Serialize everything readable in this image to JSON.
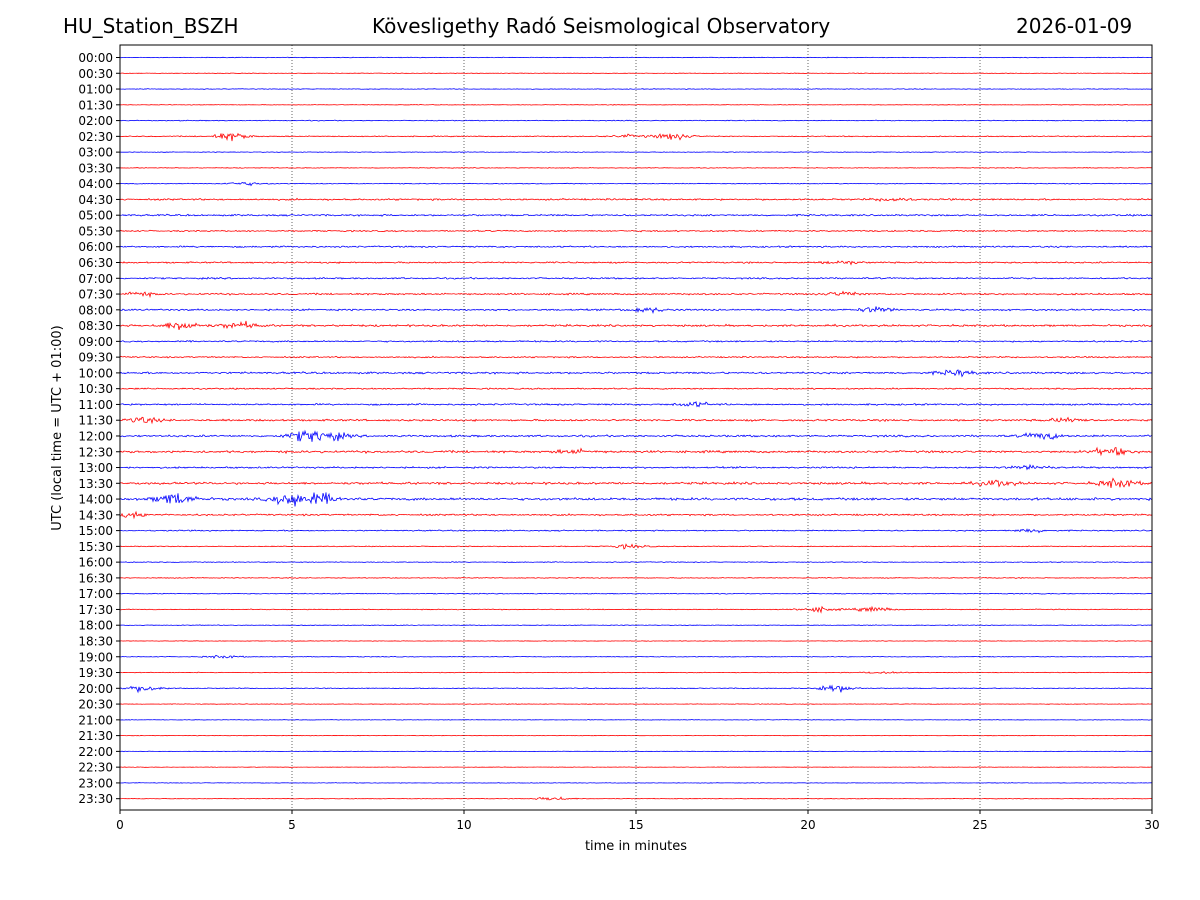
{
  "header": {
    "station": "HU_Station_BSZH",
    "observatory": "Kövesligethy Radó Seismological Observatory",
    "date": "2026-01-09"
  },
  "chart_data": {
    "type": "line",
    "title": "Kövesligethy Radó Seismological Observatory",
    "xlabel": "time in minutes",
    "ylabel": "UTC (local time = UTC + 01:00)",
    "xlim": [
      0,
      30
    ],
    "x_ticks": [
      "0",
      "5",
      "10",
      "15",
      "20",
      "25",
      "30"
    ],
    "vertical_gridlines_at": [
      5,
      10,
      15,
      20,
      25
    ],
    "colors": [
      "#0000ff",
      "#ff0000"
    ],
    "trace_labels": [
      "00:00",
      "00:30",
      "01:00",
      "01:30",
      "02:00",
      "02:30",
      "03:00",
      "03:30",
      "04:00",
      "04:30",
      "05:00",
      "05:30",
      "06:00",
      "06:30",
      "07:00",
      "07:30",
      "08:00",
      "08:30",
      "09:00",
      "09:30",
      "10:00",
      "10:30",
      "11:00",
      "11:30",
      "12:00",
      "12:30",
      "13:00",
      "13:30",
      "14:00",
      "14:30",
      "15:00",
      "15:30",
      "16:00",
      "16:30",
      "17:00",
      "17:30",
      "18:00",
      "18:30",
      "19:00",
      "19:30",
      "20:00",
      "20:30",
      "21:00",
      "21:30",
      "22:00",
      "22:30",
      "23:00",
      "23:30"
    ],
    "noise_level": [
      0.12,
      0.1,
      0.12,
      0.1,
      0.15,
      0.18,
      0.12,
      0.12,
      0.15,
      0.3,
      0.3,
      0.25,
      0.28,
      0.28,
      0.28,
      0.3,
      0.3,
      0.35,
      0.28,
      0.25,
      0.35,
      0.25,
      0.3,
      0.35,
      0.35,
      0.4,
      0.3,
      0.4,
      0.45,
      0.3,
      0.22,
      0.15,
      0.15,
      0.15,
      0.15,
      0.15,
      0.12,
      0.1,
      0.12,
      0.12,
      0.15,
      0.1,
      0.1,
      0.08,
      0.1,
      0.08,
      0.1,
      0.1
    ],
    "events": [
      {
        "trace": 5,
        "minute": 3.2,
        "amp": 1.4
      },
      {
        "trace": 5,
        "minute": 16.1,
        "amp": 1.2
      },
      {
        "trace": 5,
        "minute": 14.8,
        "amp": 0.5
      },
      {
        "trace": 8,
        "minute": 3.6,
        "amp": 0.6
      },
      {
        "trace": 9,
        "minute": 22.5,
        "amp": 0.6
      },
      {
        "trace": 13,
        "minute": 21.0,
        "amp": 0.6
      },
      {
        "trace": 15,
        "minute": 0.5,
        "amp": 0.7
      },
      {
        "trace": 15,
        "minute": 21.0,
        "amp": 0.7
      },
      {
        "trace": 16,
        "minute": 22.0,
        "amp": 0.9
      },
      {
        "trace": 16,
        "minute": 15.3,
        "amp": 0.9
      },
      {
        "trace": 17,
        "minute": 1.8,
        "amp": 1.6
      },
      {
        "trace": 17,
        "minute": 3.5,
        "amp": 1.2
      },
      {
        "trace": 20,
        "minute": 24.3,
        "amp": 1.0
      },
      {
        "trace": 22,
        "minute": 16.7,
        "amp": 0.8
      },
      {
        "trace": 23,
        "minute": 0.6,
        "amp": 1.0
      },
      {
        "trace": 23,
        "minute": 27.5,
        "amp": 0.7
      },
      {
        "trace": 24,
        "minute": 5.4,
        "amp": 1.8
      },
      {
        "trace": 24,
        "minute": 6.1,
        "amp": 1.4
      },
      {
        "trace": 24,
        "minute": 26.8,
        "amp": 1.2
      },
      {
        "trace": 25,
        "minute": 28.8,
        "amp": 1.3
      },
      {
        "trace": 25,
        "minute": 13.2,
        "amp": 0.7
      },
      {
        "trace": 26,
        "minute": 26.5,
        "amp": 0.8
      },
      {
        "trace": 27,
        "minute": 25.5,
        "amp": 1.0
      },
      {
        "trace": 27,
        "minute": 29.0,
        "amp": 1.6
      },
      {
        "trace": 28,
        "minute": 1.6,
        "amp": 2.2
      },
      {
        "trace": 28,
        "minute": 5.0,
        "amp": 2.6
      },
      {
        "trace": 28,
        "minute": 5.8,
        "amp": 1.8
      },
      {
        "trace": 29,
        "minute": 0.3,
        "amp": 1.0
      },
      {
        "trace": 30,
        "minute": 26.5,
        "amp": 0.6
      },
      {
        "trace": 31,
        "minute": 14.8,
        "amp": 0.7
      },
      {
        "trace": 35,
        "minute": 20.3,
        "amp": 0.9
      },
      {
        "trace": 35,
        "minute": 21.9,
        "amp": 0.9
      },
      {
        "trace": 38,
        "minute": 3.0,
        "amp": 0.5
      },
      {
        "trace": 39,
        "minute": 22.2,
        "amp": 0.5
      },
      {
        "trace": 40,
        "minute": 0.7,
        "amp": 1.2
      },
      {
        "trace": 40,
        "minute": 20.8,
        "amp": 1.4
      },
      {
        "trace": 47,
        "minute": 12.6,
        "amp": 0.7
      }
    ]
  }
}
